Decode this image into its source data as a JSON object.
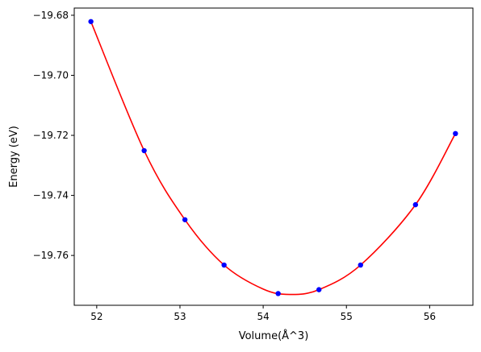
{
  "chart_data": {
    "type": "scatter",
    "xlabel": "Volume(Å^3)",
    "ylabel": "Energy (eV)",
    "xlim": [
      51.73,
      56.52
    ],
    "ylim": [
      -19.7766,
      -19.6776
    ],
    "x_ticks": [
      52,
      53,
      54,
      55,
      56
    ],
    "x_tick_labels": [
      "52",
      "53",
      "54",
      "55",
      "56"
    ],
    "y_ticks": [
      -19.68,
      -19.7,
      -19.72,
      -19.74,
      -19.76
    ],
    "y_tick_labels": [
      "−19.68",
      "−19.70",
      "−19.72",
      "−19.74",
      "−19.76"
    ],
    "grid": false,
    "series": [
      {
        "kind": "points",
        "color": "#0000ff",
        "marker": "circle",
        "x": [
          51.93,
          52.57,
          53.06,
          53.53,
          54.18,
          54.67,
          55.17,
          55.83,
          56.31
        ],
        "y": [
          -19.6821,
          -19.7251,
          -19.7481,
          -19.7632,
          -19.7727,
          -19.7714,
          -19.7632,
          -19.7431,
          -19.7194
        ]
      },
      {
        "kind": "fit-curve",
        "color": "#ff0000",
        "x": [
          51.93,
          52.57,
          53.06,
          53.53,
          54.0,
          54.32,
          54.67,
          55.17,
          55.83,
          56.31
        ],
        "y": [
          -19.6821,
          -19.7251,
          -19.7481,
          -19.7632,
          -19.7712,
          -19.773,
          -19.7714,
          -19.7632,
          -19.7431,
          -19.7194
        ]
      }
    ]
  }
}
